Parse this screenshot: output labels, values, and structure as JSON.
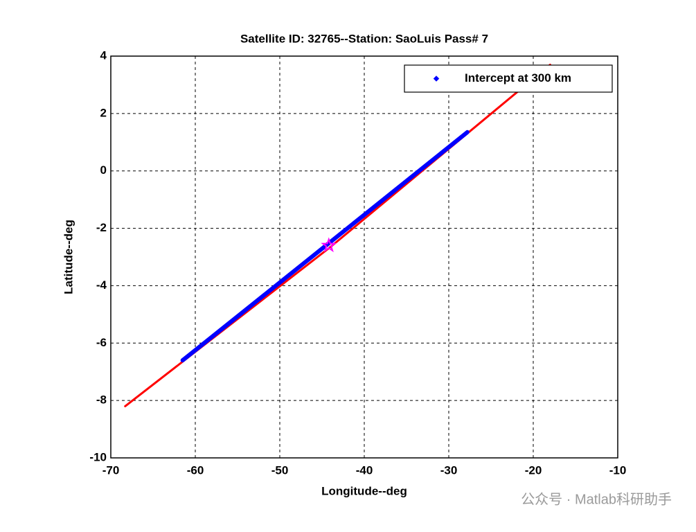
{
  "chart_data": {
    "type": "line",
    "title": "Satellite ID: 32765--Station: SaoLuis Pass# 7",
    "x_label": "Longitude--deg",
    "y_label": "Latitude--deg",
    "xlim": [
      -70,
      -10
    ],
    "ylim": [
      -10,
      4
    ],
    "xticks": [
      -70,
      -60,
      -50,
      -40,
      -30,
      -20,
      -10
    ],
    "yticks": [
      -10,
      -8,
      -6,
      -4,
      -2,
      0,
      2,
      4
    ],
    "grid": true,
    "legend": "upper right",
    "series": [
      {
        "color": "#ff0000",
        "x": [
          -68.3,
          -44,
          -18
        ],
        "values": [
          -8.2,
          -2.65,
          3.7
        ]
      },
      {
        "name": "Intercept at 300 km",
        "color": "#0000ff",
        "marker": "dot",
        "x": [
          -61.5,
          -55,
          -50,
          -45,
          -40,
          -35,
          -30,
          -27.8
        ],
        "values": [
          -6.6,
          -5.07,
          -3.89,
          -2.71,
          -1.53,
          -0.35,
          0.83,
          1.35
        ]
      },
      {
        "color": "#ff00ff",
        "marker": "star",
        "x": [
          -44.2
        ],
        "values": [
          -2.6
        ]
      }
    ],
    "watermark": "公众号 · Matlab科研助手"
  }
}
